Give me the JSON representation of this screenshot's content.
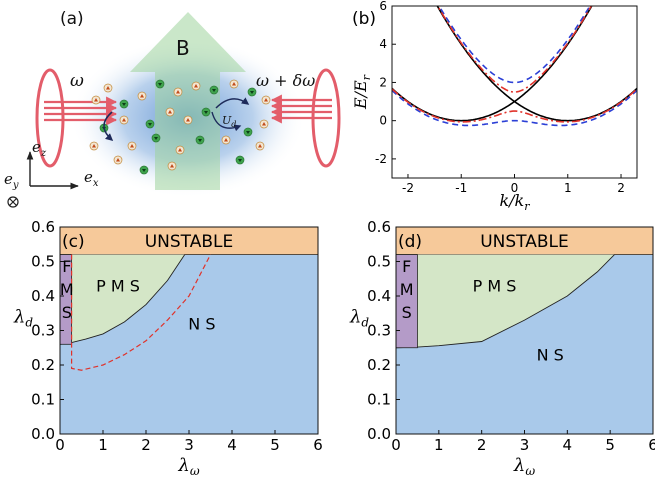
{
  "panel_a": {
    "label": "(a)",
    "field_label": "B",
    "left_beam_label": "ω",
    "right_beam_label": "ω + δω",
    "interaction_label": "U_d",
    "axis_z": "e_z",
    "axis_y": "e_y",
    "axis_x": "e_x",
    "colors": {
      "beam": "#e35d6a",
      "arrow": "#9fd39c",
      "cloud": "#6f9fd6",
      "atom_up": "#e8a33b",
      "atom_down": "#3fa34d"
    }
  },
  "chart_data": [
    {
      "id": "b",
      "type": "line",
      "panel_label": "(b)",
      "xlabel": "k/k_r",
      "ylabel": "E/E_r",
      "xlim": [
        -2.3,
        2.3
      ],
      "ylim": [
        -3,
        6
      ],
      "xticks": [
        -2,
        -1,
        0,
        1,
        2
      ],
      "yticks": [
        -2,
        0,
        2,
        4,
        6
      ],
      "series": [
        {
          "style": "solid-black",
          "kind": "parabola",
          "k0": -1,
          "color": "#000000"
        },
        {
          "style": "solid-black",
          "kind": "parabola",
          "k0": 1,
          "color": "#000000"
        },
        {
          "style": "dashed-blue",
          "kind": "band",
          "omega": 2.0,
          "band": "upper",
          "color": "#2b3fd6"
        },
        {
          "style": "dashed-blue",
          "kind": "band",
          "omega": 2.0,
          "band": "lower",
          "color": "#2b3fd6"
        },
        {
          "style": "dashdot-red",
          "kind": "band",
          "omega": 1.0,
          "band": "upper",
          "color": "#e0322a"
        },
        {
          "style": "dashdot-red",
          "kind": "band",
          "omega": 1.0,
          "band": "lower",
          "color": "#e0322a"
        }
      ]
    },
    {
      "id": "c",
      "type": "area",
      "panel_label": "(c)",
      "xlabel": "λ_ω",
      "ylabel": "λ_d",
      "xlim": [
        0,
        6
      ],
      "ylim": [
        0,
        0.6
      ],
      "xticks": [
        0,
        1,
        2,
        3,
        4,
        5,
        6
      ],
      "yticks": [
        0.0,
        0.1,
        0.2,
        0.3,
        0.4,
        0.5,
        0.6
      ],
      "regions": {
        "unstable": {
          "label": "UNSTABLE",
          "lambda_d_min": 0.52,
          "color": "#f6c99a"
        },
        "ns": {
          "label": "N S",
          "color": "#a9c9ea"
        },
        "pms": {
          "label": "P M S",
          "color": "#d4e6c7"
        },
        "fms": {
          "label": "F\nM\nS",
          "color": "#b49bc8",
          "x_max": 0.27
        }
      },
      "boundary_pms_ns": [
        [
          0,
          0.26
        ],
        [
          0.27,
          0.265
        ],
        [
          0.6,
          0.275
        ],
        [
          1.0,
          0.29
        ],
        [
          1.5,
          0.325
        ],
        [
          2.0,
          0.375
        ],
        [
          2.5,
          0.445
        ],
        [
          2.9,
          0.52
        ]
      ],
      "dashed_boundary": {
        "color": "#e0322a",
        "points": [
          [
            0.27,
            0.52
          ],
          [
            0.27,
            0.19
          ],
          [
            0.5,
            0.185
          ],
          [
            1.0,
            0.2
          ],
          [
            1.5,
            0.23
          ],
          [
            2.0,
            0.27
          ],
          [
            2.5,
            0.33
          ],
          [
            3.0,
            0.4
          ],
          [
            3.5,
            0.52
          ]
        ]
      }
    },
    {
      "id": "d",
      "type": "area",
      "panel_label": "(d)",
      "xlabel": "λ_ω",
      "ylabel": "λ_d",
      "xlim": [
        0,
        6
      ],
      "ylim": [
        0,
        0.6
      ],
      "xticks": [
        0,
        1,
        2,
        3,
        4,
        5,
        6
      ],
      "yticks": [
        0.0,
        0.1,
        0.2,
        0.3,
        0.4,
        0.5,
        0.6
      ],
      "regions": {
        "unstable": {
          "label": "UNSTABLE",
          "lambda_d_min": 0.52,
          "color": "#f6c99a"
        },
        "ns": {
          "label": "N S",
          "color": "#a9c9ea"
        },
        "pms": {
          "label": "P M S",
          "color": "#d4e6c7"
        },
        "fms": {
          "label": "F\nM\nS",
          "color": "#b49bc8",
          "x_max": 0.5
        }
      },
      "boundary_pms_ns": [
        [
          0,
          0.25
        ],
        [
          0.5,
          0.252
        ],
        [
          1.0,
          0.256
        ],
        [
          2.0,
          0.268
        ],
        [
          3.0,
          0.33
        ],
        [
          4.0,
          0.4
        ],
        [
          4.7,
          0.47
        ],
        [
          5.1,
          0.52
        ]
      ]
    }
  ]
}
